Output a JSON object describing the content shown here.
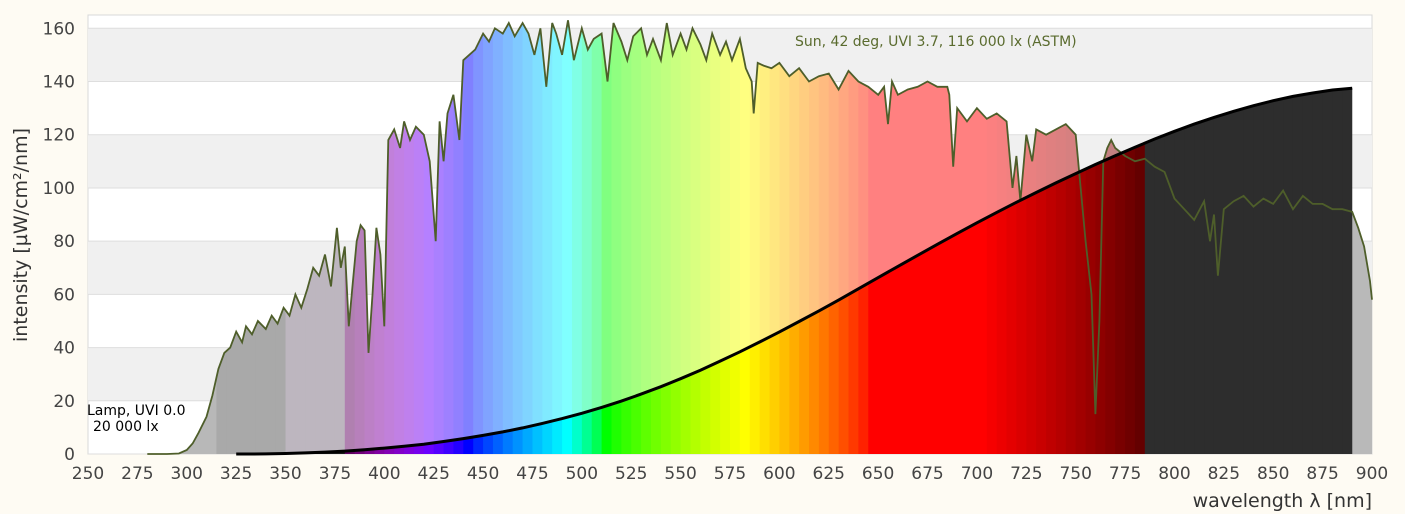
{
  "chart_data": {
    "type": "area",
    "xlabel": "wavelength λ [nm]",
    "ylabel": "intensity [µW/cm²/nm]",
    "xlim": [
      250,
      900
    ],
    "ylim": [
      0,
      165
    ],
    "grid": true,
    "x_ticks": [
      250,
      275,
      300,
      325,
      350,
      375,
      400,
      425,
      450,
      475,
      500,
      525,
      550,
      575,
      600,
      625,
      650,
      675,
      700,
      725,
      750,
      775,
      800,
      825,
      850,
      875,
      900
    ],
    "y_ticks": [
      0,
      20,
      40,
      60,
      80,
      100,
      120,
      140,
      160
    ],
    "annotations": [
      {
        "text": "Sun, 42 deg, UVI 3.7, 116 000 lx (ASTM)",
        "color": "#5a6b2e"
      },
      {
        "text": "Lamp, UVI 0.0",
        "color": "#000000"
      },
      {
        "text": "20 000 lx",
        "color": "#000000"
      }
    ],
    "series": [
      {
        "label": "Sun, 42 deg, UVI 3.7, 116 000 lx (ASTM)",
        "color": "#4e5e2a",
        "x": [
          280,
          290,
          296,
          300,
          303,
          306,
          310,
          313,
          316,
          319,
          322,
          325,
          328,
          330,
          333,
          336,
          340,
          343,
          346,
          349,
          352,
          355,
          358,
          361,
          364,
          367,
          370,
          373,
          376,
          378,
          380,
          382,
          384,
          386,
          388,
          390,
          392,
          394,
          396,
          398,
          400,
          402,
          405,
          408,
          410,
          413,
          416,
          420,
          423,
          426,
          428,
          430,
          432,
          435,
          438,
          440,
          443,
          446,
          450,
          453,
          456,
          460,
          463,
          466,
          470,
          473,
          476,
          479,
          482,
          485,
          487,
          490,
          493,
          496,
          500,
          503,
          506,
          510,
          513,
          516,
          520,
          523,
          526,
          530,
          533,
          536,
          540,
          543,
          546,
          550,
          553,
          556,
          560,
          563,
          566,
          570,
          573,
          576,
          580,
          583,
          586,
          587,
          589,
          592,
          596,
          600,
          605,
          610,
          615,
          620,
          625,
          630,
          635,
          640,
          645,
          650,
          653,
          655,
          657,
          660,
          665,
          670,
          675,
          680,
          685,
          686,
          688,
          690,
          695,
          700,
          705,
          710,
          715,
          718,
          720,
          722,
          725,
          728,
          730,
          735,
          740,
          745,
          750,
          755,
          758,
          760,
          762,
          764,
          766,
          768,
          770,
          775,
          780,
          785,
          790,
          795,
          800,
          805,
          810,
          815,
          818,
          820,
          822,
          825,
          830,
          835,
          840,
          845,
          850,
          855,
          860,
          865,
          870,
          875,
          880,
          885,
          890,
          893,
          896,
          899,
          900
        ],
        "y": [
          0,
          0,
          0.2,
          1.5,
          4,
          8,
          14,
          22,
          32,
          38,
          40,
          46,
          42,
          48,
          45,
          50,
          47,
          52,
          49,
          55,
          52,
          60,
          55,
          62,
          70,
          67,
          75,
          63,
          85,
          70,
          78,
          48,
          64,
          80,
          86,
          84,
          38,
          60,
          85,
          75,
          48,
          118,
          122,
          115,
          125,
          118,
          123,
          120,
          110,
          80,
          125,
          110,
          128,
          135,
          118,
          148,
          150,
          152,
          158,
          155,
          160,
          158,
          162,
          157,
          162,
          158,
          150,
          160,
          138,
          162,
          158,
          150,
          163,
          148,
          160,
          152,
          156,
          158,
          140,
          162,
          155,
          148,
          157,
          160,
          150,
          156,
          148,
          162,
          150,
          158,
          152,
          160,
          154,
          148,
          158,
          150,
          155,
          148,
          156,
          145,
          140,
          128,
          147,
          146,
          145,
          147,
          142,
          145,
          140,
          142,
          143,
          137,
          144,
          140,
          138,
          135,
          138,
          124,
          140,
          135,
          137,
          138,
          140,
          138,
          138,
          135,
          108,
          130,
          125,
          130,
          126,
          128,
          125,
          100,
          112,
          95,
          120,
          110,
          122,
          120,
          122,
          124,
          120,
          80,
          60,
          15,
          50,
          110,
          115,
          118,
          115,
          112,
          110,
          111,
          108,
          106,
          96,
          92,
          88,
          95,
          80,
          90,
          67,
          92,
          95,
          97,
          93,
          96,
          94,
          99,
          92,
          97,
          94,
          94,
          92,
          92,
          91,
          85,
          78,
          65,
          58
        ]
      },
      {
        "label": "Lamp, UVI 0.0 20 000 lx",
        "color": "#000000",
        "x": [
          325,
          330,
          340,
          350,
          360,
          370,
          380,
          390,
          400,
          410,
          420,
          430,
          440,
          450,
          460,
          470,
          480,
          490,
          500,
          510,
          520,
          530,
          540,
          550,
          560,
          570,
          580,
          590,
          600,
          610,
          620,
          630,
          640,
          650,
          660,
          670,
          680,
          690,
          700,
          710,
          720,
          730,
          740,
          750,
          760,
          770,
          780,
          790,
          800,
          810,
          820,
          830,
          840,
          850,
          860,
          870,
          880,
          890
        ],
        "y": [
          0,
          0,
          0.05,
          0.2,
          0.4,
          0.7,
          1.1,
          1.6,
          2.2,
          2.9,
          3.7,
          4.7,
          5.8,
          7.0,
          8.3,
          9.8,
          11.5,
          13.3,
          15.3,
          17.5,
          19.9,
          22.5,
          25.3,
          28.3,
          31.5,
          34.9,
          38.4,
          42.1,
          45.9,
          49.8,
          53.8,
          57.9,
          62.1,
          66.3,
          70.5,
          74.7,
          78.8,
          82.9,
          86.9,
          90.8,
          94.6,
          98.3,
          101.9,
          105.4,
          108.8,
          112.1,
          115.3,
          118.4,
          121.3,
          124.0,
          126.5,
          128.8,
          130.9,
          132.8,
          134.4,
          135.7,
          136.8,
          137.5
        ]
      }
    ]
  }
}
